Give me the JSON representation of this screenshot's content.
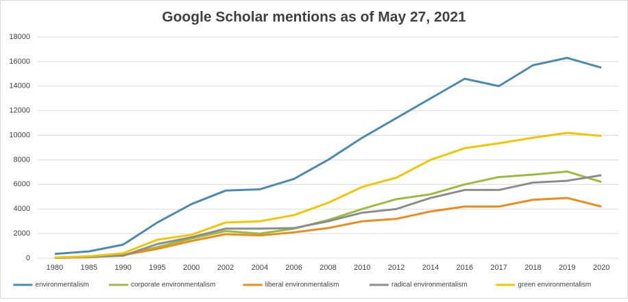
{
  "chart_data": {
    "type": "line",
    "title": "Google Scholar mentions as of May 27, 2021",
    "categories": [
      "1980",
      "1985",
      "1990",
      "1995",
      "2000",
      "2002",
      "2004",
      "2006",
      "2008",
      "2010",
      "2012",
      "2014",
      "2016",
      "2017",
      "2018",
      "2019",
      "2020"
    ],
    "series": [
      {
        "name": "environmentalism",
        "color": "#4a8ab0",
        "values": [
          350,
          550,
          1100,
          2900,
          4400,
          5500,
          5600,
          6450,
          8000,
          9800,
          11400,
          13000,
          14600,
          14000,
          15700,
          16300,
          15500
        ]
      },
      {
        "name": "corporate environmentalism",
        "color": "#9bbb3a",
        "values": [
          50,
          100,
          250,
          900,
          1600,
          2200,
          2000,
          2400,
          3100,
          4000,
          4800,
          5200,
          6000,
          6600,
          6800,
          7050,
          6200
        ]
      },
      {
        "name": "liberal environmentalism",
        "color": "#ed8b1a",
        "values": [
          30,
          80,
          250,
          750,
          1400,
          1950,
          1850,
          2100,
          2450,
          3000,
          3200,
          3800,
          4200,
          4200,
          4750,
          4900,
          4200
        ]
      },
      {
        "name": "radical environmentalism",
        "color": "#8c8c8c",
        "values": [
          30,
          100,
          200,
          1150,
          1700,
          2400,
          2400,
          2450,
          3000,
          3700,
          4000,
          4900,
          5550,
          5550,
          6150,
          6300,
          6750
        ]
      },
      {
        "name": "green environmentalism",
        "color": "#f5c400",
        "values": [
          50,
          150,
          400,
          1500,
          1900,
          2900,
          3000,
          3500,
          4500,
          5800,
          6550,
          8000,
          8950,
          9350,
          9800,
          10200,
          9950
        ]
      }
    ],
    "ylim": [
      0,
      18000
    ],
    "yticks": [
      0,
      2000,
      4000,
      6000,
      8000,
      10000,
      12000,
      14000,
      16000,
      18000
    ],
    "grid": true,
    "legend": "bottom"
  }
}
